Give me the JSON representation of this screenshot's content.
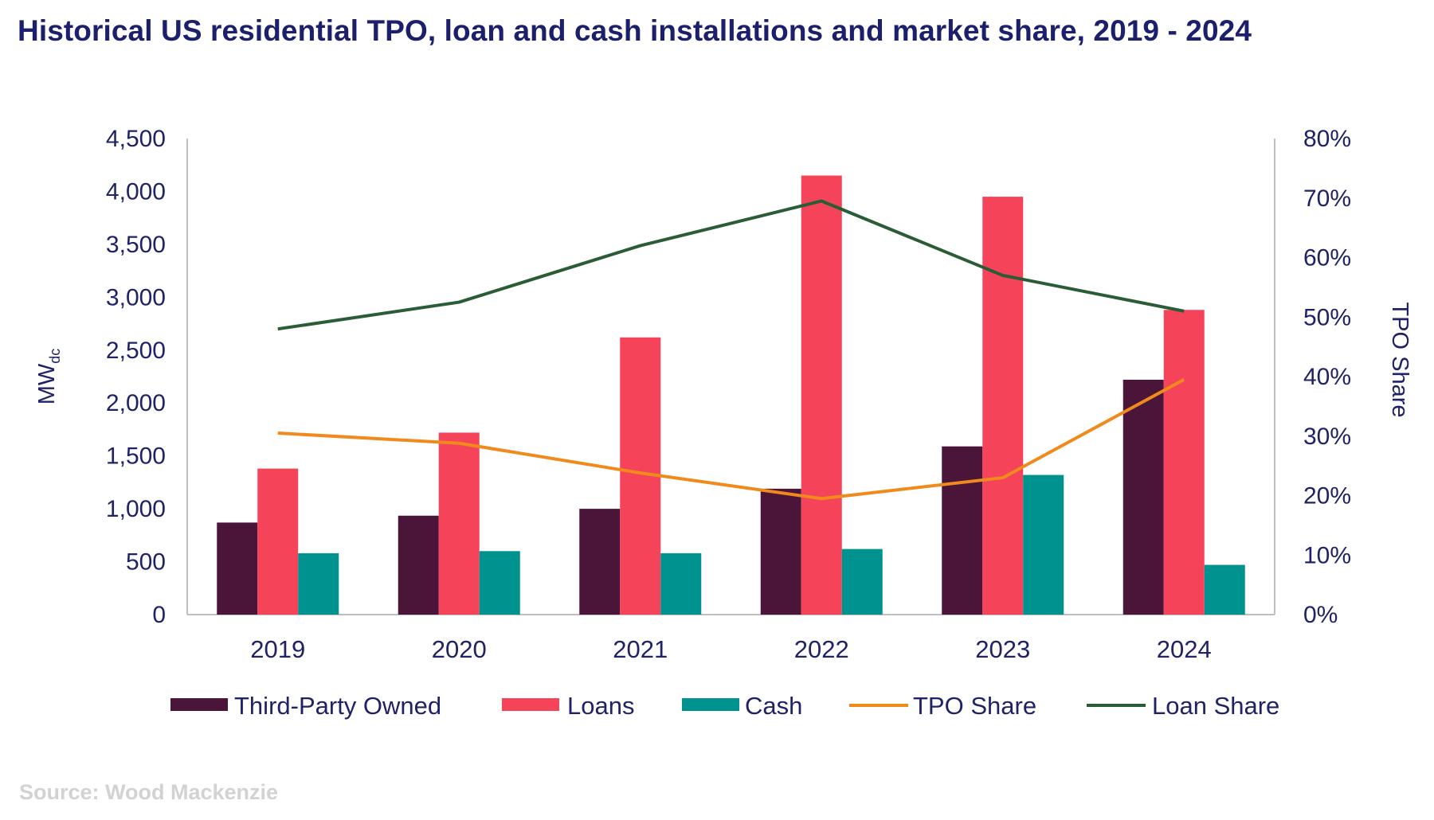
{
  "title": "Historical US residential TPO, loan and cash installations and market share, 2019 - 2024",
  "source": "Source: Wood Mackenzie",
  "chart_data": {
    "type": "bar",
    "categories": [
      "2019",
      "2020",
      "2021",
      "2022",
      "2023",
      "2024"
    ],
    "series": [
      {
        "name": "Third-Party Owned",
        "kind": "bar",
        "axis": "left",
        "color": "#4a1538",
        "values": [
          870,
          935,
          1000,
          1190,
          1590,
          2220
        ]
      },
      {
        "name": "Loans",
        "kind": "bar",
        "axis": "left",
        "color": "#f5435a",
        "values": [
          1380,
          1720,
          2620,
          4150,
          3950,
          2880
        ]
      },
      {
        "name": "Cash",
        "kind": "bar",
        "axis": "left",
        "color": "#00928f",
        "values": [
          580,
          600,
          580,
          620,
          1320,
          470
        ]
      },
      {
        "name": "TPO Share",
        "kind": "line",
        "axis": "right",
        "color": "#f08a1c",
        "values": [
          30.5,
          28.8,
          23.8,
          19.5,
          23.0,
          39.5
        ]
      },
      {
        "name": "Loan Share",
        "kind": "line",
        "axis": "right",
        "color": "#2a5c35",
        "values": [
          48.0,
          52.5,
          62.0,
          69.5,
          57.0,
          51.0
        ]
      }
    ],
    "ylabel_left": "MWdc",
    "ylabel_left_main": "MW",
    "ylabel_left_sub": "dc",
    "ylabel_right": "TPO Share",
    "ylim_left": [
      0,
      4500
    ],
    "ylim_right": [
      0,
      80
    ],
    "yticks_left": [
      "0",
      "500",
      "1,000",
      "1,500",
      "2,000",
      "2,500",
      "3,000",
      "3,500",
      "4,000",
      "4,500"
    ],
    "yticks_right": [
      "0%",
      "10%",
      "20%",
      "30%",
      "40%",
      "50%",
      "60%",
      "70%",
      "80%"
    ],
    "grid": false,
    "legend_position": "bottom"
  }
}
